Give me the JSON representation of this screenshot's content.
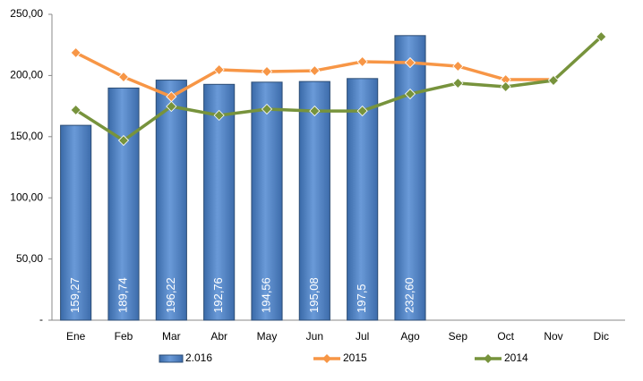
{
  "chart_data": {
    "type": "bar-line",
    "categories": [
      "Ene",
      "Feb",
      "Mar",
      "Abr",
      "May",
      "Jun",
      "Jul",
      "Ago",
      "Sep",
      "Oct",
      "Nov",
      "Dic"
    ],
    "series": [
      {
        "name": "2.016",
        "type": "bar",
        "color": "#4f81bd",
        "values": [
          159.27,
          189.74,
          196.22,
          192.76,
          194.56,
          195.08,
          197.5,
          232.6,
          null,
          null,
          null,
          null
        ],
        "value_labels": [
          "159,27",
          "189,74",
          "196,22",
          "192,76",
          "194,56",
          "195,08",
          "197,5",
          "232,60",
          null,
          null,
          null,
          null
        ]
      },
      {
        "name": "2015",
        "type": "line",
        "color": "#f79646",
        "values": [
          218.6,
          198.8,
          182.7,
          204.7,
          203.2,
          203.9,
          211.3,
          210.5,
          207.6,
          196.6,
          196.6,
          null
        ]
      },
      {
        "name": "2014",
        "type": "line",
        "color": "#77933c",
        "values": [
          171.8,
          146.9,
          174.7,
          167.4,
          172.5,
          171,
          171,
          184.9,
          193.7,
          190.8,
          195.9,
          231.7
        ]
      }
    ],
    "ylim": [
      0,
      250
    ],
    "yticks": [
      {
        "value": 0,
        "label": "-"
      },
      {
        "value": 50,
        "label": "50,00"
      },
      {
        "value": 100,
        "label": "100,00"
      },
      {
        "value": 150,
        "label": "150,00"
      },
      {
        "value": 200,
        "label": "200,00"
      },
      {
        "value": 250,
        "label": "250,00"
      }
    ],
    "legend": "bottom"
  }
}
